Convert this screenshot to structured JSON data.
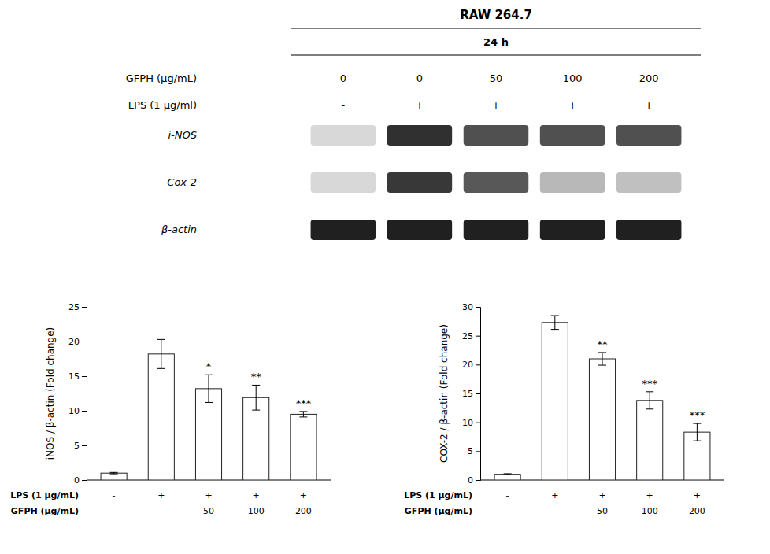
{
  "chart_data": [
    {
      "type": "blot",
      "title": "RAW 264.7",
      "subtitle": "24 h",
      "conditions": [
        {
          "name": "GFPH (μg/mL)",
          "labels": [
            "0",
            "0",
            "50",
            "100",
            "200"
          ]
        },
        {
          "name": "LPS (1 μg/ml)",
          "labels": [
            "-",
            "+",
            "+",
            "+",
            "+"
          ]
        }
      ],
      "series": [
        {
          "name": "i-NOS",
          "colors": [
            "#d8d8d8",
            "#303030",
            "#505050",
            "#505050",
            "#505050"
          ]
        },
        {
          "name": "Cox-2",
          "colors": [
            "#d8d8d8",
            "#383838",
            "#585858",
            "#b8b8b8",
            "#c0c0c0"
          ]
        },
        {
          "name": "β-actin",
          "colors": [
            "#202020",
            "#202020",
            "#202020",
            "#202020",
            "#202020"
          ]
        }
      ]
    },
    {
      "type": "bar",
      "ylabel": "iNOS / β-actin (Fold change)",
      "values": [
        1.0,
        18.2,
        13.2,
        11.9,
        9.5
      ],
      "errors": [
        0.1,
        2.1,
        2.0,
        1.8,
        0.4
      ],
      "annotations": [
        null,
        null,
        "*",
        "**",
        "***"
      ],
      "ylim": [
        0,
        25
      ],
      "yticks": [
        0,
        5,
        10,
        15,
        20,
        25
      ],
      "color": "#ffffff",
      "conditions": [
        {
          "name": "LPS (1 μg/mL)",
          "labels": [
            "-",
            "+",
            "+",
            "+",
            "+"
          ]
        },
        {
          "name": "GFPH (μg/mL)",
          "labels": [
            "-",
            "-",
            "50",
            "100",
            "200"
          ]
        }
      ]
    },
    {
      "type": "bar",
      "ylabel": "COX-2 / β-actin (Fold change)",
      "values": [
        1.0,
        27.3,
        21.0,
        13.8,
        8.3
      ],
      "errors": [
        0.1,
        1.2,
        1.1,
        1.5,
        1.5
      ],
      "annotations": [
        null,
        null,
        "**",
        "***",
        "***"
      ],
      "ylim": [
        0,
        30
      ],
      "yticks": [
        0,
        5,
        10,
        15,
        20,
        25,
        30
      ],
      "color": "#ffffff",
      "conditions": [
        {
          "name": "LPS (1 μg/mL)",
          "labels": [
            "-",
            "+",
            "+",
            "+",
            "+"
          ]
        },
        {
          "name": "GFPH (μg/mL)",
          "labels": [
            "-",
            "-",
            "50",
            "100",
            "200"
          ]
        }
      ]
    }
  ]
}
